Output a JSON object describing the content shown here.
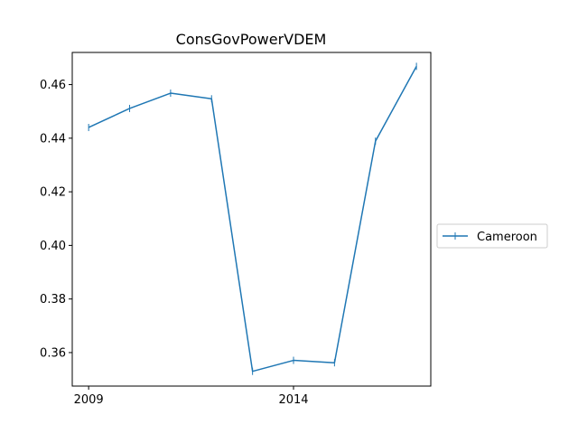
{
  "chart_data": {
    "type": "line",
    "title": "ConsGovPowerVDEM",
    "xlabel": "",
    "ylabel": "",
    "x": [
      2009,
      2010,
      2011,
      2012,
      2013,
      2014,
      2015,
      2016,
      2017
    ],
    "series": [
      {
        "name": "Cameroon",
        "color": "#1f77b4",
        "marker": "|",
        "values": [
          0.444,
          0.4511,
          0.4568,
          0.4547,
          0.353,
          0.3571,
          0.3562,
          0.4389,
          0.4668
        ]
      }
    ],
    "xticks": [
      2009,
      2014
    ],
    "xtick_labels": [
      "2009",
      "2014"
    ],
    "yticks": [
      0.36,
      0.38,
      0.4,
      0.42,
      0.44,
      0.46
    ],
    "ytick_labels": [
      "0.36",
      "0.38",
      "0.40",
      "0.42",
      "0.44",
      "0.46"
    ],
    "xlim": [
      2008.6,
      2017.35
    ],
    "ylim": [
      0.3475,
      0.472
    ],
    "grid": false,
    "legend_position": "right-outside"
  }
}
